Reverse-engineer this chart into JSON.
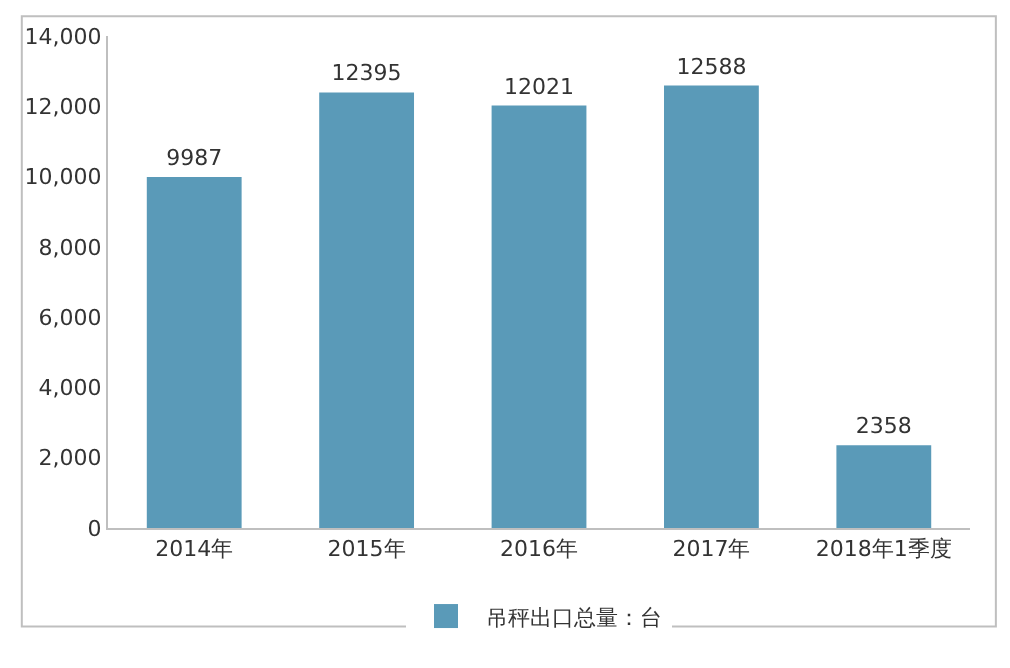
{
  "chart_data": {
    "type": "bar",
    "categories": [
      "2014年",
      "2015年",
      "2016年",
      "2017年",
      "2018年1季度"
    ],
    "series": [
      {
        "name": "吊秤出口总量：台",
        "color": "#5a9ab8",
        "values": [
          9987,
          12395,
          12021,
          12588,
          2358
        ]
      }
    ],
    "ylim": [
      0,
      14000
    ],
    "yticks": [
      {
        "value": 0,
        "label": "0"
      },
      {
        "value": 2000,
        "label": "2,000"
      },
      {
        "value": 4000,
        "label": "4,000"
      },
      {
        "value": 6000,
        "label": "6,000"
      },
      {
        "value": 8000,
        "label": "8,000"
      },
      {
        "value": 10000,
        "label": "10,000"
      },
      {
        "value": 12000,
        "label": "12,000"
      },
      {
        "value": 14000,
        "label": "14,000"
      }
    ],
    "data_labels": true,
    "grid": false,
    "legend": "bottom"
  }
}
